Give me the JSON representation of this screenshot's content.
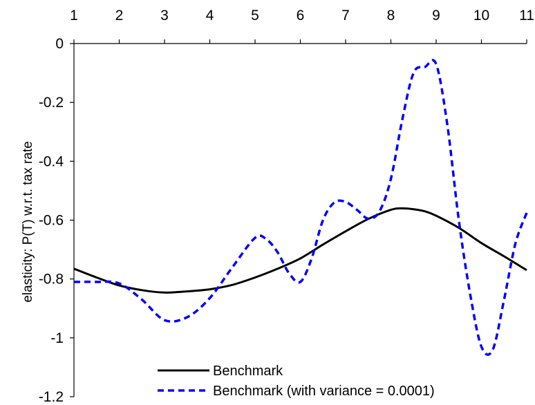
{
  "chart_data": {
    "type": "line",
    "title": "",
    "xlabel": "",
    "ylabel": "elasticity: P(T) w.r.t. tax rate",
    "xlim": [
      1,
      11
    ],
    "ylim": [
      -1.2,
      0
    ],
    "x_ticks": [
      "1",
      "2",
      "3",
      "4",
      "5",
      "6",
      "7",
      "8",
      "9",
      "10",
      "11"
    ],
    "y_ticks": [
      "0",
      "-0.2",
      "-0.4",
      "-0.6",
      "-0.8",
      "-1",
      "-1.2"
    ],
    "x_axis_position": "top",
    "grid": false,
    "legend_position": "bottom-center",
    "series": [
      {
        "name": "Benchmark",
        "style": "solid",
        "color": "#000000",
        "x": [
          1,
          1.5,
          2,
          2.5,
          3,
          3.5,
          4,
          4.5,
          5,
          5.5,
          6,
          6.5,
          7,
          7.5,
          8,
          8.25,
          8.5,
          8.75,
          9,
          9.5,
          10,
          10.5,
          11
        ],
        "y": [
          -0.765,
          -0.795,
          -0.822,
          -0.838,
          -0.846,
          -0.842,
          -0.835,
          -0.82,
          -0.795,
          -0.765,
          -0.73,
          -0.683,
          -0.638,
          -0.596,
          -0.565,
          -0.56,
          -0.563,
          -0.57,
          -0.585,
          -0.626,
          -0.678,
          -0.723,
          -0.77
        ]
      },
      {
        "name": "Benchmark (with variance = 0.0001)",
        "style": "dashed",
        "color": "#0000ff",
        "x": [
          1,
          1.5,
          2,
          2.5,
          3,
          3.5,
          4,
          4.5,
          5,
          5.25,
          5.5,
          5.75,
          6,
          6.25,
          6.5,
          6.75,
          7,
          7.25,
          7.5,
          7.75,
          8,
          8.25,
          8.5,
          8.75,
          9,
          9.25,
          9.5,
          9.75,
          10,
          10.25,
          10.5,
          10.75,
          11
        ],
        "y": [
          -0.81,
          -0.81,
          -0.815,
          -0.87,
          -0.94,
          -0.93,
          -0.865,
          -0.76,
          -0.66,
          -0.665,
          -0.71,
          -0.78,
          -0.81,
          -0.73,
          -0.6,
          -0.54,
          -0.538,
          -0.565,
          -0.595,
          -0.57,
          -0.46,
          -0.26,
          -0.1,
          -0.08,
          -0.07,
          -0.28,
          -0.6,
          -0.85,
          -1.03,
          -1.04,
          -0.87,
          -0.68,
          -0.575
        ]
      }
    ]
  }
}
